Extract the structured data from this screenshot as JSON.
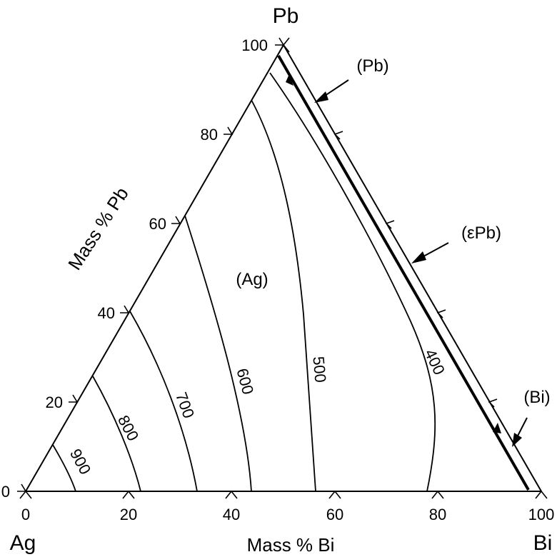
{
  "corners": {
    "top": "Pb",
    "left": "Ag",
    "right": "Bi"
  },
  "axes": {
    "bottom_title": "Mass % Bi",
    "left_title": "Mass % Pb",
    "bottom_ticks": [
      "0",
      "20",
      "40",
      "60",
      "80",
      "100"
    ],
    "left_ticks": [
      "0",
      "20",
      "40",
      "60",
      "80",
      "100"
    ]
  },
  "regions": {
    "ag": "(Ag)",
    "pb": "(Pb)",
    "epb": "(εPb)",
    "bi": "(Bi)"
  },
  "isotherms": [
    {
      "label": "900"
    },
    {
      "label": "800"
    },
    {
      "label": "700"
    },
    {
      "label": "600"
    },
    {
      "label": "500"
    },
    {
      "label": "400"
    }
  ]
}
